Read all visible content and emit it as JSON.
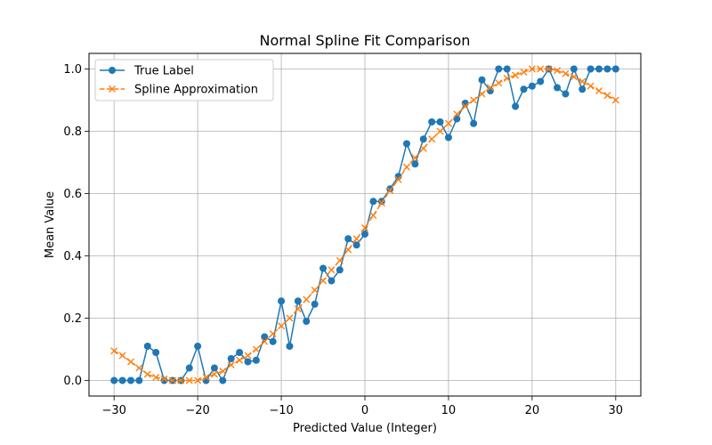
{
  "chart_data": {
    "type": "line",
    "title": "Normal Spline Fit Comparison",
    "xlabel": "Predicted Value (Integer)",
    "ylabel": "Mean Value",
    "xlim": [
      -33,
      33
    ],
    "ylim": [
      -0.05,
      1.05
    ],
    "xticks": [
      -30,
      -20,
      -10,
      0,
      10,
      20,
      30
    ],
    "xtick_labels": [
      "−30",
      "−20",
      "−10",
      "0",
      "10",
      "20",
      "30"
    ],
    "yticks": [
      0.0,
      0.2,
      0.4,
      0.6,
      0.8,
      1.0
    ],
    "ytick_labels": [
      "0.0",
      "0.2",
      "0.4",
      "0.6",
      "0.8",
      "1.0"
    ],
    "grid": true,
    "legend_position": "top-left",
    "x": [
      -30,
      -29,
      -28,
      -27,
      -26,
      -25,
      -24,
      -23,
      -22,
      -21,
      -20,
      -19,
      -18,
      -17,
      -16,
      -15,
      -14,
      -13,
      -12,
      -11,
      -10,
      -9,
      -8,
      -7,
      -6,
      -5,
      -4,
      -3,
      -2,
      -1,
      0,
      1,
      2,
      3,
      4,
      5,
      6,
      7,
      8,
      9,
      10,
      11,
      12,
      13,
      14,
      15,
      16,
      17,
      18,
      19,
      20,
      21,
      22,
      23,
      24,
      25,
      26,
      27,
      28,
      29,
      30
    ],
    "series": [
      {
        "name": "True Label",
        "color": "#1f77b4",
        "marker": "circle",
        "linestyle": "solid",
        "values": [
          0.0,
          0.0,
          0.0,
          0.0,
          0.11,
          0.09,
          0.0,
          0.0,
          0.0,
          0.04,
          0.11,
          0.0,
          0.04,
          0.0,
          0.07,
          0.09,
          0.06,
          0.065,
          0.14,
          0.125,
          0.255,
          0.11,
          0.255,
          0.19,
          0.245,
          0.36,
          0.32,
          0.355,
          0.455,
          0.435,
          0.47,
          0.575,
          0.575,
          0.615,
          0.655,
          0.76,
          0.695,
          0.775,
          0.83,
          0.83,
          0.78,
          0.84,
          0.89,
          0.825,
          0.965,
          0.93,
          1.0,
          1.0,
          0.88,
          0.935,
          0.945,
          0.96,
          1.0,
          0.94,
          0.92,
          1.0,
          0.935,
          1.0,
          1.0,
          1.0,
          1.0
        ]
      },
      {
        "name": "Spline Approximation",
        "color": "#ff7f0e",
        "marker": "x",
        "linestyle": "dashed",
        "values": [
          0.095,
          0.08,
          0.06,
          0.04,
          0.02,
          0.01,
          0.005,
          0.0,
          0.0,
          0.0,
          0.0,
          0.01,
          0.02,
          0.03,
          0.05,
          0.065,
          0.08,
          0.1,
          0.125,
          0.15,
          0.175,
          0.2,
          0.23,
          0.26,
          0.29,
          0.32,
          0.355,
          0.385,
          0.42,
          0.455,
          0.49,
          0.53,
          0.57,
          0.61,
          0.645,
          0.685,
          0.715,
          0.745,
          0.775,
          0.8,
          0.825,
          0.855,
          0.88,
          0.9,
          0.92,
          0.94,
          0.955,
          0.97,
          0.98,
          0.99,
          1.0,
          1.0,
          1.0,
          0.995,
          0.985,
          0.975,
          0.96,
          0.945,
          0.93,
          0.915,
          0.9
        ]
      }
    ]
  }
}
